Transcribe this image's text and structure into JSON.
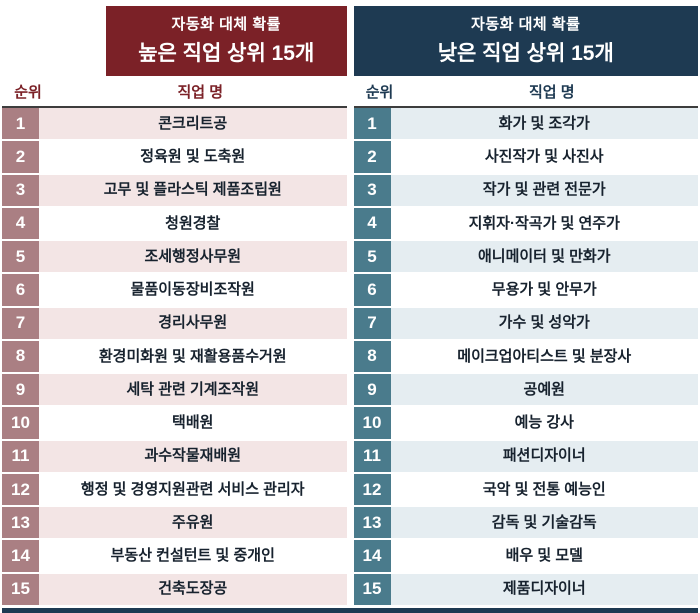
{
  "tables": [
    {
      "id": "high-automation",
      "title_line1": "자동화 대체 확률",
      "title_line2": "높은 직업 상위 15개",
      "col_rank": "순위",
      "col_job": "직업 명",
      "theme": {
        "header_bg": "#7b2127",
        "rank_bg": "#aa7f83",
        "row_tint": "#f3e5e5",
        "label_color": "#7b2127"
      }
    },
    {
      "id": "low-automation",
      "title_line1": "자동화 대체 확률",
      "title_line2": "낮은 직업 상위 15개",
      "col_rank": "순위",
      "col_job": "직업 명",
      "theme": {
        "header_bg": "#1e3a52",
        "rank_bg": "#4a7b8c",
        "row_tint": "#e5edf1",
        "label_color": "#1e3a52"
      }
    }
  ],
  "accent": {
    "bottom_bar_color": "#1e3a52"
  },
  "chart_data": [
    {
      "type": "table",
      "title": "자동화 대체 확률 높은 직업 상위 15개",
      "columns": [
        "순위",
        "직업 명"
      ],
      "rows": [
        [
          1,
          "콘크리트공"
        ],
        [
          2,
          "정육원 및 도축원"
        ],
        [
          3,
          "고무 및 플라스틱 제품조립원"
        ],
        [
          4,
          "청원경찰"
        ],
        [
          5,
          "조세행정사무원"
        ],
        [
          6,
          "물품이동장비조작원"
        ],
        [
          7,
          "경리사무원"
        ],
        [
          8,
          "환경미화원 및 재활용품수거원"
        ],
        [
          9,
          "세탁 관련 기계조작원"
        ],
        [
          10,
          "택배원"
        ],
        [
          11,
          "과수작물재배원"
        ],
        [
          12,
          "행정 및 경영지원관련 서비스 관리자"
        ],
        [
          13,
          "주유원"
        ],
        [
          14,
          "부동산 컨설턴트 및 중개인"
        ],
        [
          15,
          "건축도장공"
        ]
      ]
    },
    {
      "type": "table",
      "title": "자동화 대체 확률 낮은 직업 상위 15개",
      "columns": [
        "순위",
        "직업 명"
      ],
      "rows": [
        [
          1,
          "화가 및 조각가"
        ],
        [
          2,
          "사진작가 및 사진사"
        ],
        [
          3,
          "작가 및 관련 전문가"
        ],
        [
          4,
          "지휘자·작곡가 및 연주가"
        ],
        [
          5,
          "애니메이터 및 만화가"
        ],
        [
          6,
          "무용가 및 안무가"
        ],
        [
          7,
          "가수 및 성악가"
        ],
        [
          8,
          "메이크업아티스트 및 분장사"
        ],
        [
          9,
          "공예원"
        ],
        [
          10,
          "예능 강사"
        ],
        [
          11,
          "패션디자이너"
        ],
        [
          12,
          "국악 및 전통 예능인"
        ],
        [
          13,
          "감독 및 기술감독"
        ],
        [
          14,
          "배우 및 모델"
        ],
        [
          15,
          "제품디자이너"
        ]
      ]
    }
  ]
}
